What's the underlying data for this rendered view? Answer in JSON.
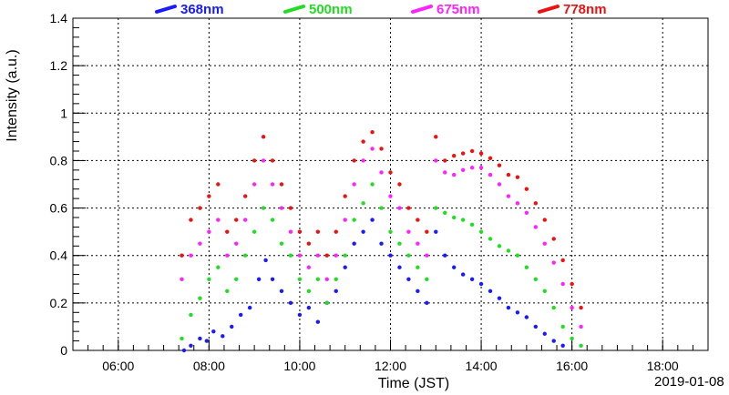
{
  "chart_data": {
    "type": "scatter",
    "title": "",
    "xlabel": "Time (JST)",
    "ylabel": "Intensity (a.u.)",
    "date_label": "2019-01-08",
    "x_unit": "hours (JST)",
    "xlim": [
      5.0,
      19.0
    ],
    "ylim": [
      0,
      1.4
    ],
    "x_ticks": [
      6,
      8,
      10,
      12,
      14,
      16,
      18
    ],
    "x_tick_labels": [
      "06:00",
      "08:00",
      "10:00",
      "12:00",
      "14:00",
      "16:00",
      "18:00"
    ],
    "y_ticks": [
      0,
      0.2,
      0.4,
      0.6,
      0.8,
      1.0,
      1.2,
      1.4
    ],
    "y_tick_labels": [
      "0",
      "0.2",
      "0.4",
      "0.6",
      "0.8",
      "1",
      "1.2",
      "1.4"
    ],
    "grid": true,
    "legend_position": "top",
    "series": [
      {
        "name": "368nm",
        "color": "#1a1aff",
        "x": [
          7.45,
          7.6,
          7.8,
          7.95,
          8.1,
          8.3,
          8.5,
          8.7,
          8.9,
          9.1,
          9.25,
          9.4,
          9.6,
          9.8,
          10.0,
          10.2,
          10.4,
          10.6,
          10.8,
          11.0,
          11.2,
          11.4,
          11.6,
          11.8,
          12.0,
          12.2,
          12.4,
          12.6,
          12.8,
          13.0,
          13.2,
          13.4,
          13.6,
          13.8,
          14.0,
          14.2,
          14.4,
          14.6,
          14.8,
          15.0,
          15.2,
          15.4,
          15.6,
          15.8
        ],
        "y": [
          0.0,
          0.02,
          0.05,
          0.04,
          0.08,
          0.06,
          0.1,
          0.15,
          0.18,
          0.3,
          0.38,
          0.3,
          0.25,
          0.2,
          0.15,
          0.18,
          0.12,
          0.2,
          0.25,
          0.35,
          0.45,
          0.5,
          0.55,
          0.45,
          0.4,
          0.35,
          0.3,
          0.25,
          0.2,
          0.5,
          0.4,
          0.35,
          0.32,
          0.3,
          0.28,
          0.25,
          0.22,
          0.18,
          0.16,
          0.14,
          0.1,
          0.07,
          0.04,
          0.02
        ]
      },
      {
        "name": "500nm",
        "color": "#22dd22",
        "x": [
          7.4,
          7.6,
          7.8,
          8.0,
          8.2,
          8.4,
          8.6,
          8.8,
          9.0,
          9.2,
          9.4,
          9.6,
          9.8,
          10.0,
          10.2,
          10.4,
          10.6,
          10.8,
          11.0,
          11.2,
          11.4,
          11.6,
          11.8,
          12.0,
          12.2,
          12.4,
          12.6,
          12.8,
          13.0,
          13.2,
          13.4,
          13.6,
          13.8,
          14.0,
          14.2,
          14.4,
          14.6,
          14.8,
          15.0,
          15.2,
          15.4,
          15.6,
          15.8,
          16.0,
          16.2
        ],
        "y": [
          0.05,
          0.15,
          0.22,
          0.3,
          0.35,
          0.25,
          0.3,
          0.4,
          0.5,
          0.6,
          0.55,
          0.45,
          0.4,
          0.3,
          0.25,
          0.3,
          0.2,
          0.3,
          0.4,
          0.55,
          0.62,
          0.7,
          0.6,
          0.5,
          0.45,
          0.4,
          0.35,
          0.3,
          0.6,
          0.58,
          0.56,
          0.55,
          0.53,
          0.5,
          0.47,
          0.44,
          0.42,
          0.4,
          0.35,
          0.3,
          0.25,
          0.18,
          0.1,
          0.05,
          0.02
        ]
      },
      {
        "name": "675nm",
        "color": "#ff22ff",
        "x": [
          7.4,
          7.6,
          7.8,
          8.0,
          8.2,
          8.4,
          8.6,
          8.8,
          9.0,
          9.2,
          9.4,
          9.6,
          9.8,
          10.0,
          10.2,
          10.4,
          10.6,
          10.8,
          11.0,
          11.2,
          11.4,
          11.6,
          11.8,
          12.0,
          12.2,
          12.4,
          12.6,
          12.8,
          13.0,
          13.2,
          13.4,
          13.6,
          13.8,
          14.0,
          14.2,
          14.4,
          14.6,
          14.8,
          15.0,
          15.2,
          15.4,
          15.6,
          15.8,
          16.0,
          16.2
        ],
        "y": [
          0.3,
          0.4,
          0.45,
          0.5,
          0.55,
          0.4,
          0.45,
          0.55,
          0.7,
          0.8,
          0.7,
          0.6,
          0.5,
          0.4,
          0.35,
          0.4,
          0.3,
          0.4,
          0.55,
          0.7,
          0.8,
          0.85,
          0.75,
          0.65,
          0.6,
          0.5,
          0.45,
          0.4,
          0.8,
          0.75,
          0.74,
          0.76,
          0.77,
          0.77,
          0.74,
          0.7,
          0.65,
          0.62,
          0.58,
          0.52,
          0.45,
          0.37,
          0.28,
          0.18,
          0.1
        ]
      },
      {
        "name": "778nm",
        "color": "#ee1111",
        "x": [
          7.4,
          7.6,
          7.8,
          8.0,
          8.2,
          8.4,
          8.6,
          8.8,
          9.0,
          9.2,
          9.4,
          9.6,
          9.8,
          10.0,
          10.2,
          10.4,
          10.6,
          10.8,
          11.0,
          11.2,
          11.4,
          11.6,
          11.8,
          12.0,
          12.2,
          12.4,
          12.6,
          12.8,
          13.0,
          13.2,
          13.4,
          13.6,
          13.8,
          14.0,
          14.2,
          14.4,
          14.6,
          14.8,
          15.0,
          15.2,
          15.4,
          15.6,
          15.8,
          16.0,
          16.2
        ],
        "y": [
          0.4,
          0.55,
          0.6,
          0.65,
          0.7,
          0.5,
          0.55,
          0.65,
          0.8,
          0.9,
          0.8,
          0.7,
          0.6,
          0.5,
          0.45,
          0.5,
          0.4,
          0.5,
          0.65,
          0.8,
          0.88,
          0.92,
          0.85,
          0.75,
          0.7,
          0.6,
          0.55,
          0.5,
          0.9,
          0.8,
          0.82,
          0.83,
          0.84,
          0.83,
          0.81,
          0.78,
          0.74,
          0.73,
          0.68,
          0.62,
          0.55,
          0.47,
          0.38,
          0.28,
          0.18
        ]
      }
    ]
  }
}
